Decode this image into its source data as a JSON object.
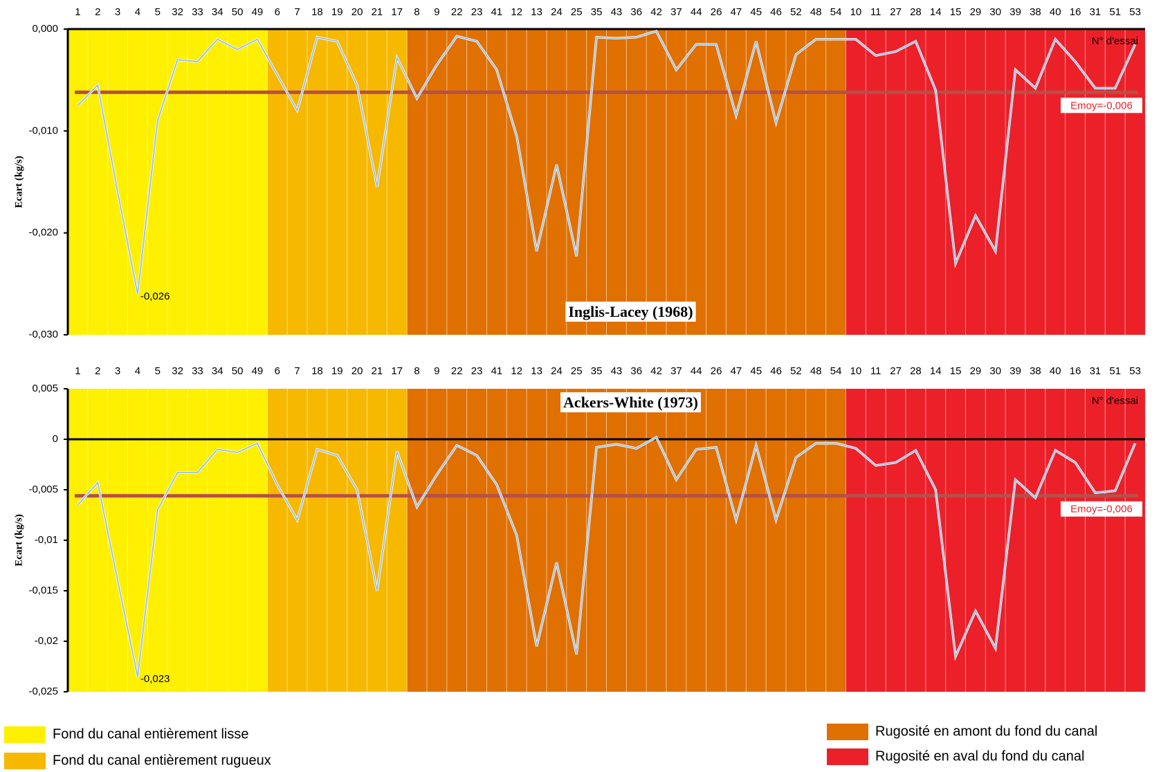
{
  "chart_data": [
    {
      "type": "line",
      "title": "Inglis-Lacey (1968)",
      "x_label": "N° d'essai",
      "y_label": "Ecart (kg/s)",
      "categories": [
        "1",
        "2",
        "3",
        "4",
        "5",
        "32",
        "33",
        "34",
        "50",
        "49",
        "6",
        "7",
        "18",
        "19",
        "20",
        "21",
        "17",
        "8",
        "9",
        "22",
        "23",
        "41",
        "12",
        "13",
        "24",
        "25",
        "35",
        "43",
        "36",
        "42",
        "37",
        "44",
        "26",
        "47",
        "45",
        "46",
        "52",
        "48",
        "54",
        "10",
        "11",
        "27",
        "28",
        "14",
        "15",
        "29",
        "30",
        "39",
        "38",
        "40",
        "16",
        "31",
        "51",
        "53"
      ],
      "series": [
        {
          "name": "Ecart",
          "color": "#9dc3e6",
          "values": [
            -0.0075,
            -0.0055,
            -0.016,
            -0.026,
            -0.009,
            -0.003,
            -0.0032,
            -0.001,
            -0.002,
            -0.001,
            -0.0045,
            -0.008,
            -0.0008,
            -0.0012,
            -0.0055,
            -0.0155,
            -0.0028,
            -0.0068,
            -0.0035,
            -0.0007,
            -0.0012,
            -0.004,
            -0.0105,
            -0.0218,
            -0.0133,
            -0.0223,
            -0.0008,
            -0.0009,
            -0.0008,
            -0.0002,
            -0.004,
            -0.0015,
            -0.0015,
            -0.0085,
            -0.0012,
            -0.0092,
            -0.0025,
            -0.001,
            -0.001,
            -0.001,
            -0.0026,
            -0.0022,
            -0.0012,
            -0.006,
            -0.023,
            -0.0183,
            -0.0218,
            -0.004,
            -0.0058,
            -0.001,
            -0.0032,
            -0.0058,
            -0.0058,
            -0.0015
          ],
          "value_labels": [
            null,
            null,
            null,
            "-0,026",
            null,
            null,
            null,
            null,
            null,
            null,
            null,
            null,
            null,
            null,
            null,
            null,
            null,
            null,
            null,
            null,
            null,
            null,
            null,
            null,
            null,
            null,
            null,
            null,
            null,
            null,
            null,
            null,
            null,
            null,
            null,
            null,
            null,
            null,
            null,
            null,
            null,
            null,
            null,
            null,
            null,
            null,
            null,
            null,
            null,
            null,
            null,
            null,
            null,
            null
          ]
        }
      ],
      "mean": {
        "value": -0.0062,
        "label": "Emoy=-0,006",
        "color": "#b5504a"
      },
      "ylim": [
        -0.03,
        0
      ],
      "yticks": [
        {
          "value": 0,
          "label": "0,000"
        },
        {
          "value": -0.01,
          "label": "-0,010"
        },
        {
          "value": -0.02,
          "label": "-0,020"
        },
        {
          "value": -0.03,
          "label": "-0,030"
        }
      ]
    },
    {
      "type": "line",
      "title": "Ackers-White (1973)",
      "x_label": "N° d'essai",
      "y_label": "Ecart (kg/s)",
      "categories": [
        "1",
        "2",
        "3",
        "4",
        "5",
        "32",
        "33",
        "34",
        "50",
        "49",
        "6",
        "7",
        "18",
        "19",
        "20",
        "21",
        "17",
        "8",
        "9",
        "22",
        "23",
        "41",
        "12",
        "13",
        "24",
        "25",
        "35",
        "43",
        "36",
        "42",
        "37",
        "44",
        "26",
        "47",
        "45",
        "46",
        "52",
        "48",
        "54",
        "10",
        "11",
        "27",
        "28",
        "14",
        "15",
        "29",
        "30",
        "39",
        "38",
        "40",
        "16",
        "31",
        "51",
        "53"
      ],
      "series": [
        {
          "name": "Ecart",
          "color": "#9dc3e6",
          "values": [
            -0.0065,
            -0.0043,
            -0.014,
            -0.0235,
            -0.007,
            -0.0033,
            -0.0033,
            -0.001,
            -0.0013,
            -0.0004,
            -0.0045,
            -0.008,
            -0.001,
            -0.0016,
            -0.005,
            -0.015,
            -0.0012,
            -0.0067,
            -0.0035,
            -0.0006,
            -0.0016,
            -0.0045,
            -0.0095,
            -0.0205,
            -0.0122,
            -0.0213,
            -0.0008,
            -0.0005,
            -0.0009,
            0.0002,
            -0.004,
            -0.001,
            -0.0008,
            -0.008,
            -0.0006,
            -0.008,
            -0.0018,
            -0.0004,
            -0.0004,
            -0.0009,
            -0.0026,
            -0.0023,
            -0.0011,
            -0.005,
            -0.0215,
            -0.017,
            -0.0207,
            -0.004,
            -0.0058,
            -0.0011,
            -0.0023,
            -0.0053,
            -0.0051,
            -0.0004
          ],
          "value_labels": [
            null,
            null,
            null,
            "-0,023",
            null,
            null,
            null,
            null,
            null,
            null,
            null,
            null,
            null,
            null,
            null,
            null,
            null,
            null,
            null,
            null,
            null,
            null,
            null,
            null,
            null,
            null,
            null,
            null,
            null,
            null,
            null,
            null,
            null,
            null,
            null,
            null,
            null,
            null,
            null,
            null,
            null,
            null,
            null,
            null,
            null,
            null,
            null,
            null,
            null,
            null,
            null,
            null,
            null,
            null
          ]
        }
      ],
      "mean": {
        "value": -0.0056,
        "label": "Emoy=-0,006",
        "color": "#b5504a"
      },
      "ylim": [
        -0.025,
        0.005
      ],
      "yticks": [
        {
          "value": 0.005,
          "label": "0,005"
        },
        0,
        {
          "value": -0.005,
          "label": "-0,005"
        },
        {
          "value": -0.01,
          "label": "-0,01"
        },
        {
          "value": -0.015,
          "label": "-0,015"
        },
        {
          "value": -0.02,
          "label": "-0,02"
        },
        {
          "value": -0.025,
          "label": "-0,025"
        }
      ]
    }
  ],
  "background_bands": [
    {
      "name": "Fond du canal entièrement lisse",
      "color": "#ffef00",
      "from": "1",
      "to": "49"
    },
    {
      "name": "Fond du canal entièrement rugueux",
      "color": "#f7b800",
      "from": "6",
      "to": "17"
    },
    {
      "name": "Rugosité  en amont du fond du canal",
      "color": "#e07000",
      "from": "8",
      "to": "54"
    },
    {
      "name": "Rugosité  en aval du fond du canal",
      "color": "#ec2029",
      "from": "10",
      "to": "53"
    }
  ]
}
